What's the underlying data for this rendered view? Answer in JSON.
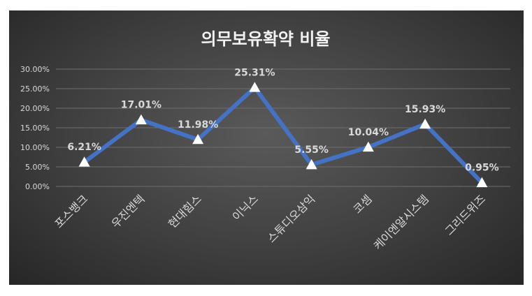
{
  "chart_data": {
    "type": "line",
    "title": "의무보유확약 비율",
    "categories": [
      "포스뱅크",
      "우진엔텍",
      "현대힘스",
      "이닉스",
      "스튜디오삼익",
      "코셈",
      "케이엔알시스템",
      "그리드위즈"
    ],
    "series": [
      {
        "values": [
          6.21,
          17.01,
          11.98,
          25.31,
          5.55,
          10.04,
          15.93,
          0.95
        ],
        "labels": [
          "6.21%",
          "17.01%",
          "11.98%",
          "25.31%",
          "5.55%",
          "10.04%",
          "15.93%",
          "0.95%"
        ],
        "color": "#4472c4",
        "marker": "triangle",
        "marker_color": "#ffffff"
      }
    ],
    "yticks": [
      "30.00%",
      "25.00%",
      "20.00%",
      "15.00%",
      "10.00%",
      "5.00%",
      "0.00%"
    ],
    "ylim": [
      0,
      30
    ],
    "grid": true,
    "legend": "none",
    "background": "#404040"
  }
}
